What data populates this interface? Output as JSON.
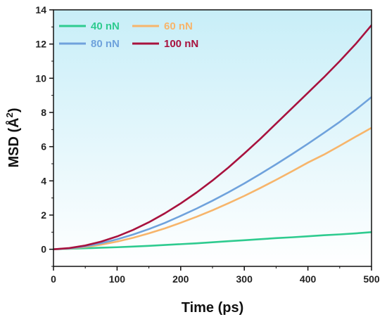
{
  "chart_data": {
    "type": "line",
    "title": "",
    "xlabel": "Time (ps)",
    "ylabel": {
      "main": "MSD (Å",
      "sup": "2",
      "end": ")"
    },
    "xlim": [
      0,
      500
    ],
    "ylim": [
      -1,
      14
    ],
    "xticks": [
      0,
      100,
      200,
      300,
      400,
      500
    ],
    "yticks": [
      0,
      2,
      4,
      6,
      8,
      10,
      12,
      14
    ],
    "grid": false,
    "legend_position": "top-left",
    "background": {
      "top_color": "#c8eef8",
      "bottom_color": "#ffffff"
    },
    "series": [
      {
        "name": "40 nN",
        "color": "#2ecb8f",
        "x": [
          0,
          25,
          50,
          75,
          100,
          125,
          150,
          175,
          200,
          225,
          250,
          275,
          300,
          325,
          350,
          375,
          400,
          425,
          450,
          475,
          500
        ],
        "y": [
          0,
          0.03,
          0.06,
          0.09,
          0.12,
          0.16,
          0.2,
          0.25,
          0.3,
          0.35,
          0.41,
          0.47,
          0.53,
          0.59,
          0.65,
          0.7,
          0.76,
          0.82,
          0.87,
          0.93,
          1.0
        ]
      },
      {
        "name": "60 nN",
        "color": "#f7b56b",
        "x": [
          0,
          25,
          50,
          75,
          100,
          125,
          150,
          175,
          200,
          225,
          250,
          275,
          300,
          325,
          350,
          375,
          400,
          425,
          450,
          475,
          500
        ],
        "y": [
          0,
          0.04,
          0.13,
          0.27,
          0.45,
          0.67,
          0.93,
          1.22,
          1.55,
          1.9,
          2.28,
          2.69,
          3.12,
          3.58,
          4.06,
          4.56,
          5.07,
          5.53,
          6.05,
          6.58,
          7.1
        ]
      },
      {
        "name": "80 nN",
        "color": "#6fa2dc",
        "x": [
          0,
          25,
          50,
          75,
          100,
          125,
          150,
          175,
          200,
          225,
          250,
          275,
          300,
          325,
          350,
          375,
          400,
          425,
          450,
          475,
          500
        ],
        "y": [
          0,
          0.05,
          0.17,
          0.35,
          0.58,
          0.86,
          1.18,
          1.54,
          1.95,
          2.38,
          2.84,
          3.33,
          3.85,
          4.4,
          4.97,
          5.56,
          6.17,
          6.8,
          7.45,
          8.15,
          8.9
        ]
      },
      {
        "name": "100 nN",
        "color": "#a8123e",
        "x": [
          0,
          25,
          50,
          75,
          100,
          125,
          150,
          175,
          200,
          225,
          250,
          275,
          300,
          325,
          350,
          375,
          400,
          425,
          450,
          475,
          500
        ],
        "y": [
          0,
          0.07,
          0.22,
          0.45,
          0.75,
          1.13,
          1.58,
          2.1,
          2.68,
          3.32,
          4.02,
          4.78,
          5.6,
          6.45,
          7.35,
          8.25,
          9.15,
          10.05,
          11.0,
          12.0,
          13.1
        ]
      }
    ],
    "legend": [
      {
        "label": "40 nN",
        "color": "#2ecb8f"
      },
      {
        "label": "60 nN",
        "color": "#f7b56b"
      },
      {
        "label": "80 nN",
        "color": "#6fa2dc"
      },
      {
        "label": "100 nN",
        "color": "#a8123e"
      }
    ]
  }
}
